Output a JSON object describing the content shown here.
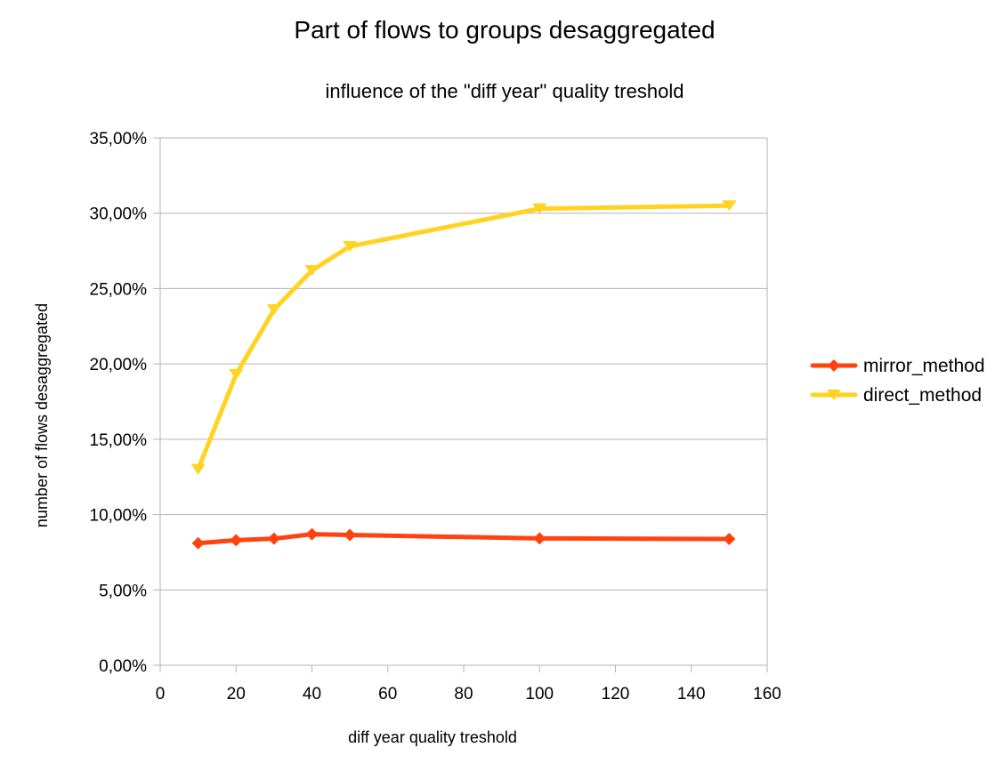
{
  "chart_data": {
    "type": "line",
    "title": "Part of flows to groups desaggregated",
    "subtitle": "influence of the \"diff year\" quality treshold",
    "xlabel": "diff year quality treshold",
    "ylabel": "number of flows desaggregated",
    "xlim": [
      0,
      160
    ],
    "ylim": [
      0,
      0.35
    ],
    "x_ticks": [
      "0",
      "20",
      "40",
      "60",
      "80",
      "100",
      "120",
      "140",
      "160"
    ],
    "y_ticks": [
      "0,00%",
      "5,00%",
      "10,00%",
      "15,00%",
      "20,00%",
      "25,00%",
      "30,00%",
      "35,00%"
    ],
    "grid": true,
    "legend_position": "right",
    "x": [
      10,
      20,
      30,
      40,
      50,
      100,
      150
    ],
    "series": [
      {
        "name": "mirror_method",
        "color": "#ff420e",
        "marker": "diamond",
        "values": [
          0.081,
          0.083,
          0.084,
          0.087,
          0.0865,
          0.0842,
          0.0838
        ]
      },
      {
        "name": "direct_method",
        "color": "#ffd320",
        "marker": "triangle-down",
        "values": [
          0.13,
          0.193,
          0.236,
          0.262,
          0.278,
          0.303,
          0.305
        ]
      }
    ]
  }
}
